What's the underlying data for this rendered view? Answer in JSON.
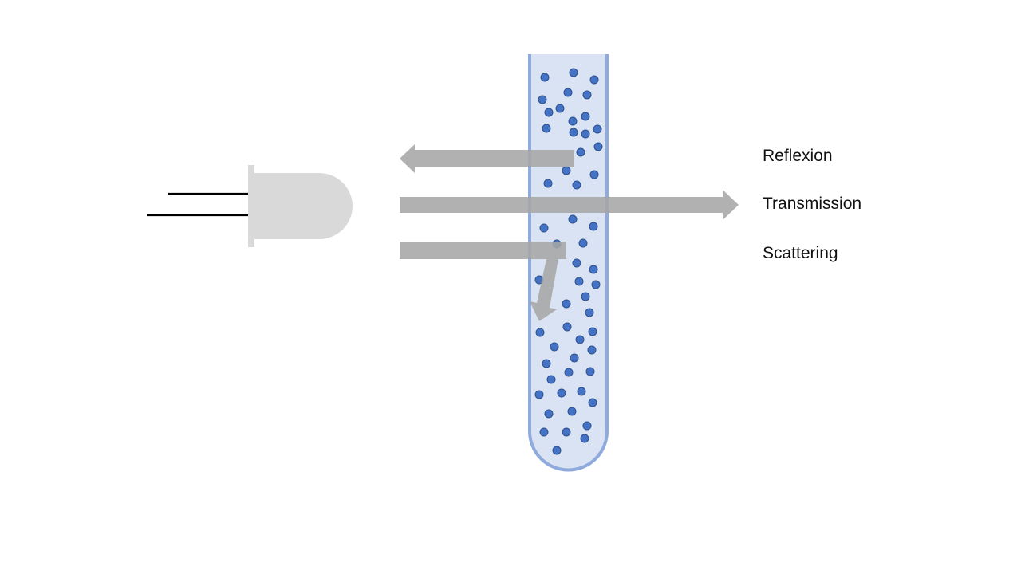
{
  "labels": {
    "reflexion": "Reflexion",
    "transmission": "Transmission",
    "scattering": "Scattering"
  },
  "colors": {
    "background": "#ffffff",
    "led_body": "#d9d9d9",
    "led_leads": "#000000",
    "arrow_fill": "#a6a6a6",
    "tube_fill": "#dae3f3",
    "tube_outline": "#8faadc",
    "particle_fill": "#4472c4",
    "particle_outline": "#2f528f",
    "label_text": "#111111"
  }
}
